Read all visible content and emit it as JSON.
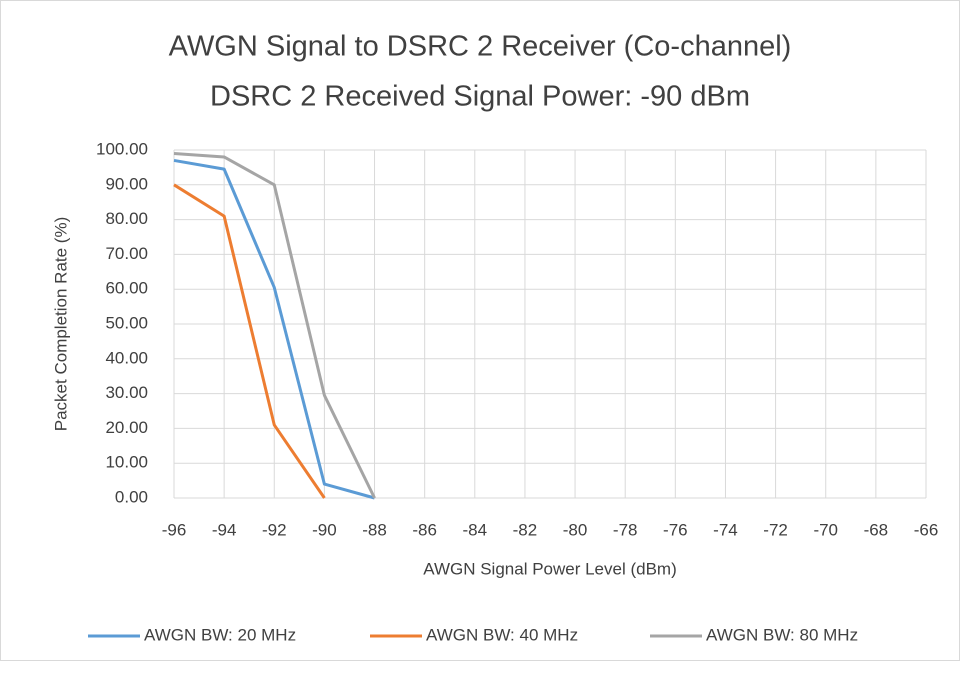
{
  "chart_data": {
    "type": "line",
    "title": "AWGN Signal to DSRC 2 Receiver (Co-channel)",
    "subtitle": "DSRC 2 Received Signal Power: -90 dBm",
    "x_label": "AWGN Signal Power Level (dBm)",
    "y_label": "Packet Completion Rate (%)",
    "x": [
      -96,
      -94,
      -92,
      -90,
      -88
    ],
    "series": [
      {
        "name": "AWGN BW: 20 MHz",
        "color": "#5b9bd5",
        "values": [
          97,
          94.5,
          60.5,
          4,
          0
        ]
      },
      {
        "name": "AWGN BW: 40 MHz",
        "color": "#ed7d31",
        "values": [
          90,
          81,
          21,
          0,
          null
        ]
      },
      {
        "name": "AWGN BW: 80 MHz",
        "color": "#a5a5a5",
        "values": [
          99,
          98,
          90,
          29.5,
          0
        ]
      }
    ],
    "xlim": [
      -96,
      -66
    ],
    "xticks": [
      -96,
      -94,
      -92,
      -90,
      -88,
      -86,
      -84,
      -82,
      -80,
      -78,
      -76,
      -74,
      -72,
      -70,
      -68,
      -66
    ],
    "ylim": [
      0,
      100
    ],
    "yticks": [
      {
        "value": 0,
        "label": "0.00"
      },
      {
        "value": 10,
        "label": "10.00"
      },
      {
        "value": 20,
        "label": "20.00"
      },
      {
        "value": 30,
        "label": "30.00"
      },
      {
        "value": 40,
        "label": "40.00"
      },
      {
        "value": 50,
        "label": "50.00"
      },
      {
        "value": 60,
        "label": "60.00"
      },
      {
        "value": 70,
        "label": "70.00"
      },
      {
        "value": 80,
        "label": "80.00"
      },
      {
        "value": 90,
        "label": "90.00"
      },
      {
        "value": 100,
        "label": "100.00"
      }
    ],
    "grid": true,
    "legend": "bottom"
  }
}
